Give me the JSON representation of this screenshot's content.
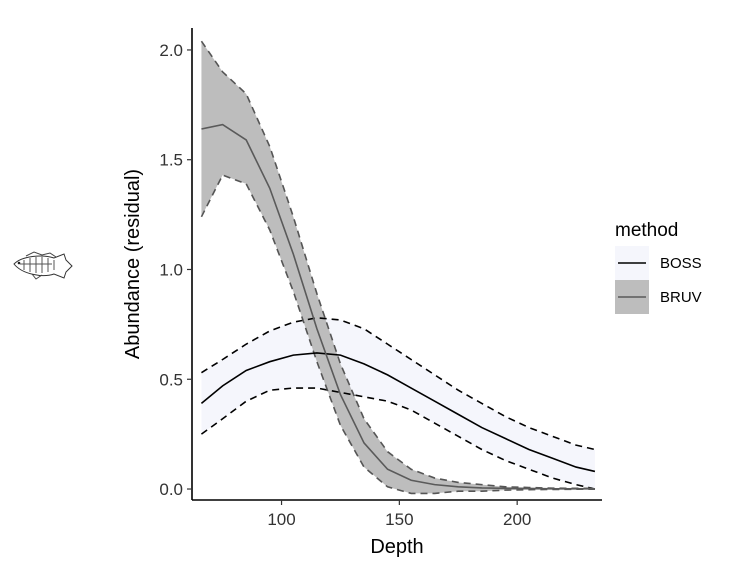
{
  "chart_data": {
    "type": "line",
    "title": "",
    "xlabel": "Depth",
    "ylabel": "Abundance (residual)",
    "xlim": [
      62,
      236
    ],
    "ylim": [
      -0.05,
      2.1
    ],
    "x_ticks": [
      100,
      150,
      200
    ],
    "x_tick_labels": [
      "100",
      "150",
      "200"
    ],
    "y_ticks": [
      0.0,
      0.5,
      1.0,
      1.5,
      2.0
    ],
    "y_tick_labels": [
      "0.0",
      "0.5",
      "1.0",
      "1.5",
      "2.0"
    ],
    "grid": false,
    "legend": {
      "title": "method",
      "position": "right",
      "entries": [
        "BOSS",
        "BRUV"
      ]
    },
    "series": [
      {
        "name": "BOSS",
        "color": "#000000",
        "ribbon_fill": "#f5f6fc",
        "bound_style": "dashed",
        "x": [
          66,
          75,
          85,
          95,
          105,
          115,
          125,
          135,
          145,
          155,
          165,
          175,
          185,
          195,
          205,
          215,
          225,
          233
        ],
        "y": [
          0.39,
          0.47,
          0.54,
          0.58,
          0.61,
          0.62,
          0.61,
          0.57,
          0.52,
          0.46,
          0.4,
          0.34,
          0.28,
          0.23,
          0.18,
          0.14,
          0.1,
          0.08
        ],
        "lower": [
          0.25,
          0.32,
          0.4,
          0.45,
          0.46,
          0.46,
          0.44,
          0.42,
          0.4,
          0.36,
          0.3,
          0.24,
          0.18,
          0.13,
          0.09,
          0.05,
          0.02,
          0.0
        ],
        "upper": [
          0.53,
          0.59,
          0.66,
          0.72,
          0.76,
          0.78,
          0.77,
          0.73,
          0.66,
          0.59,
          0.52,
          0.45,
          0.39,
          0.33,
          0.28,
          0.24,
          0.2,
          0.18
        ]
      },
      {
        "name": "BRUV",
        "color": "#5a5a5a",
        "ribbon_fill": "#bdbdbd",
        "bound_style": "dashed",
        "x": [
          66,
          75,
          85,
          95,
          105,
          115,
          125,
          135,
          145,
          155,
          165,
          175,
          185,
          195,
          205,
          215,
          225,
          233
        ],
        "y": [
          1.64,
          1.66,
          1.59,
          1.37,
          1.07,
          0.73,
          0.43,
          0.21,
          0.09,
          0.04,
          0.02,
          0.01,
          0.005,
          0.003,
          0.002,
          0.001,
          0.001,
          0.001
        ],
        "lower": [
          1.24,
          1.43,
          1.39,
          1.18,
          0.9,
          0.58,
          0.29,
          0.1,
          0.01,
          -0.02,
          -0.02,
          -0.01,
          -0.01,
          -0.005,
          -0.003,
          -0.002,
          -0.001,
          -0.001
        ],
        "upper": [
          2.04,
          1.9,
          1.8,
          1.56,
          1.24,
          0.89,
          0.57,
          0.32,
          0.17,
          0.09,
          0.05,
          0.03,
          0.02,
          0.01,
          0.007,
          0.004,
          0.003,
          0.003
        ]
      }
    ]
  },
  "decorations": {
    "fish_icon": "fish-icon"
  }
}
